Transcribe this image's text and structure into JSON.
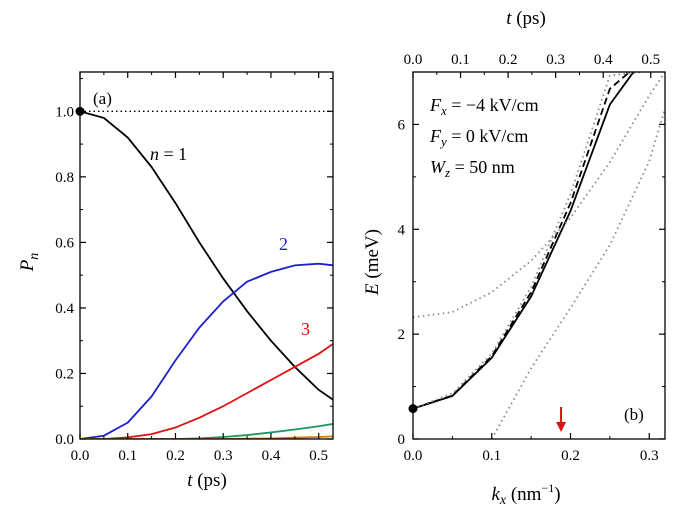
{
  "chart_data": [
    {
      "panel_label": "(a)",
      "type": "line",
      "xlabel": "t (ps)",
      "ylabel": "P_n",
      "xlim": [
        0,
        0.53
      ],
      "ylim": [
        0,
        1.12
      ],
      "xticks": [
        0.0,
        0.1,
        0.2,
        0.3,
        0.4,
        0.5
      ],
      "xtick_labels": [
        "0.0",
        "0.1",
        "0.2",
        "0.3",
        "0.4",
        "0.5"
      ],
      "yticks": [
        0.0,
        0.2,
        0.4,
        0.6,
        0.8,
        1.0
      ],
      "ytick_labels": [
        "0.0",
        "0.2",
        "0.4",
        "0.6",
        "0.8",
        "1.0"
      ],
      "reference_line": {
        "y": 1.0,
        "style": "dotted"
      },
      "marker": {
        "x": 0.0,
        "y": 1.0
      },
      "series": [
        {
          "label": "n = 1",
          "color": "#000000",
          "x": [
            0,
            0.05,
            0.1,
            0.15,
            0.2,
            0.25,
            0.3,
            0.35,
            0.4,
            0.45,
            0.5,
            0.53
          ],
          "y": [
            1.0,
            0.98,
            0.92,
            0.83,
            0.72,
            0.6,
            0.49,
            0.39,
            0.3,
            0.22,
            0.15,
            0.12
          ]
        },
        {
          "label": "2",
          "color": "#1f1fd0",
          "x": [
            0,
            0.05,
            0.1,
            0.15,
            0.2,
            0.25,
            0.3,
            0.35,
            0.4,
            0.45,
            0.5,
            0.53
          ],
          "y": [
            0.0,
            0.01,
            0.05,
            0.13,
            0.24,
            0.34,
            0.42,
            0.48,
            0.51,
            0.53,
            0.535,
            0.53
          ]
        },
        {
          "label": "3",
          "color": "#e01010",
          "x": [
            0,
            0.05,
            0.1,
            0.15,
            0.2,
            0.25,
            0.3,
            0.35,
            0.4,
            0.45,
            0.5,
            0.53
          ],
          "y": [
            0.0,
            0.0,
            0.005,
            0.015,
            0.035,
            0.065,
            0.1,
            0.14,
            0.18,
            0.22,
            0.26,
            0.29
          ]
        },
        {
          "label": "",
          "color": "#1a9a5a",
          "x": [
            0,
            0.2,
            0.25,
            0.3,
            0.35,
            0.4,
            0.45,
            0.5,
            0.53
          ],
          "y": [
            0.0,
            0.0,
            0.002,
            0.006,
            0.012,
            0.02,
            0.029,
            0.039,
            0.046
          ]
        },
        {
          "label": "",
          "color": "#d08000",
          "x": [
            0,
            0.3,
            0.35,
            0.4,
            0.45,
            0.5,
            0.53
          ],
          "y": [
            0.0,
            0.0,
            0.001,
            0.002,
            0.004,
            0.006,
            0.008
          ]
        }
      ]
    },
    {
      "panel_label": "(b)",
      "type": "line",
      "xlabel": "k_x (nm^-1)",
      "ylabel": "E (meV)",
      "top_xlabel": "t (ps)",
      "xlim": [
        0,
        0.32
      ],
      "ylim": [
        0,
        7
      ],
      "top_xlim": [
        0,
        0.53
      ],
      "xticks": [
        0.0,
        0.1,
        0.2,
        0.3
      ],
      "xtick_labels": [
        "0.0",
        "0.1",
        "0.2",
        "0.3"
      ],
      "yticks": [
        0,
        2,
        4,
        6
      ],
      "ytick_labels": [
        "0",
        "2",
        "4",
        "6"
      ],
      "top_xticks": [
        0.0,
        0.1,
        0.2,
        0.3,
        0.4,
        0.5
      ],
      "top_xtick_labels": [
        "0.0",
        "0.1",
        "0.2",
        "0.3",
        "0.4",
        "0.5"
      ],
      "annotations": [
        "F_x = −4 kV/cm",
        "F_y = 0 kV/cm",
        "W_z = 50 nm"
      ],
      "marker": {
        "x": 0.0,
        "y": 0.58
      },
      "arrow": {
        "x": 0.188,
        "color": "#e01010"
      },
      "series": [
        {
          "style": "solid",
          "color": "#000000",
          "x": [
            0,
            0.05,
            0.1,
            0.15,
            0.2,
            0.25,
            0.28
          ],
          "y": [
            0.58,
            0.82,
            1.55,
            2.72,
            4.35,
            6.38,
            7.0
          ]
        },
        {
          "style": "dashed",
          "color": "#000000",
          "x": [
            0,
            0.05,
            0.1,
            0.15,
            0.2,
            0.25,
            0.275
          ],
          "y": [
            0.58,
            0.83,
            1.58,
            2.8,
            4.5,
            6.68,
            7.0
          ]
        },
        {
          "style": "dotted",
          "color": "#888888",
          "x": [
            0,
            0.05,
            0.1,
            0.15,
            0.2,
            0.25,
            0.29
          ],
          "y": [
            0.58,
            0.87,
            1.63,
            2.9,
            4.67,
            6.93,
            7.0
          ]
        },
        {
          "style": "dotted",
          "color": "#888888",
          "x": [
            0,
            0.05,
            0.1,
            0.15,
            0.2,
            0.25,
            0.3,
            0.32
          ],
          "y": [
            2.32,
            2.42,
            2.8,
            3.4,
            4.22,
            5.28,
            6.55,
            7.0
          ]
        },
        {
          "style": "dotted",
          "color": "#888888",
          "x": [
            0.1,
            0.15,
            0.2,
            0.25,
            0.3,
            0.32
          ],
          "y": [
            0.0,
            1.35,
            2.5,
            3.7,
            5.3,
            6.3
          ]
        }
      ]
    }
  ]
}
